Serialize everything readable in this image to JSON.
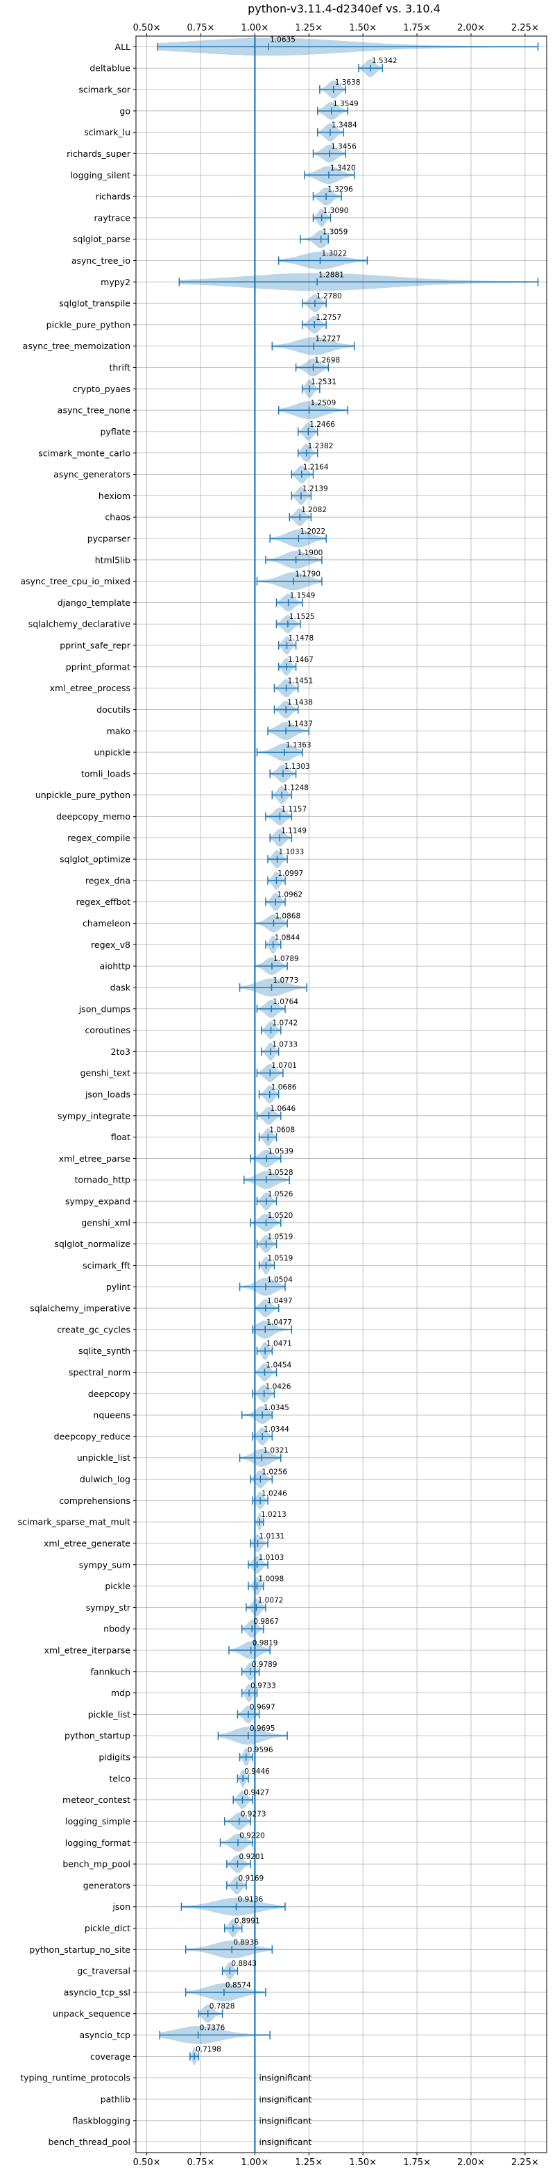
{
  "chart_data": {
    "type": "violin",
    "title": "python-v3.11.4-d2340ef vs. 3.10.4",
    "xlabel": "",
    "ylabel": "",
    "xlim": [
      0.45,
      2.35
    ],
    "x_ticks": [
      0.5,
      0.75,
      1.0,
      1.25,
      1.5,
      1.75,
      2.0,
      2.25
    ],
    "x_tick_labels": [
      "0.50×",
      "0.75×",
      "1.00×",
      "1.25×",
      "1.50×",
      "1.75×",
      "2.00×",
      "2.25×"
    ],
    "reference_line": 1.0,
    "grid": true,
    "insignificant_label": "insignificant",
    "benchmarks": [
      {
        "name": "ALL",
        "mean": 1.0635,
        "label": "1.0635",
        "min": 0.55,
        "max": 2.31
      },
      {
        "name": "deltablue",
        "mean": 1.5342,
        "label": "1.5342",
        "min": 1.48,
        "max": 1.59
      },
      {
        "name": "scimark_sor",
        "mean": 1.3638,
        "label": "1.3638",
        "min": 1.3,
        "max": 1.42
      },
      {
        "name": "go",
        "mean": 1.3549,
        "label": "1.3549",
        "min": 1.29,
        "max": 1.43
      },
      {
        "name": "scimark_lu",
        "mean": 1.3484,
        "label": "1.3484",
        "min": 1.29,
        "max": 1.41
      },
      {
        "name": "richards_super",
        "mean": 1.3456,
        "label": "1.3456",
        "min": 1.27,
        "max": 1.42
      },
      {
        "name": "logging_silent",
        "mean": 1.342,
        "label": "1.3420",
        "min": 1.23,
        "max": 1.46
      },
      {
        "name": "richards",
        "mean": 1.3296,
        "label": "1.3296",
        "min": 1.27,
        "max": 1.4
      },
      {
        "name": "raytrace",
        "mean": 1.309,
        "label": "1.3090",
        "min": 1.27,
        "max": 1.35
      },
      {
        "name": "sqlglot_parse",
        "mean": 1.3059,
        "label": "1.3059",
        "min": 1.21,
        "max": 1.34
      },
      {
        "name": "async_tree_io",
        "mean": 1.3022,
        "label": "1.3022",
        "min": 1.11,
        "max": 1.52
      },
      {
        "name": "mypy2",
        "mean": 1.2881,
        "label": "1.2881",
        "min": 0.65,
        "max": 2.31
      },
      {
        "name": "sqlglot_transpile",
        "mean": 1.278,
        "label": "1.2780",
        "min": 1.22,
        "max": 1.33
      },
      {
        "name": "pickle_pure_python",
        "mean": 1.2757,
        "label": "1.2757",
        "min": 1.22,
        "max": 1.33
      },
      {
        "name": "async_tree_memoization",
        "mean": 1.2727,
        "label": "1.2727",
        "min": 1.08,
        "max": 1.46
      },
      {
        "name": "thrift",
        "mean": 1.2698,
        "label": "1.2698",
        "min": 1.19,
        "max": 1.34
      },
      {
        "name": "crypto_pyaes",
        "mean": 1.2531,
        "label": "1.2531",
        "min": 1.22,
        "max": 1.3
      },
      {
        "name": "async_tree_none",
        "mean": 1.2509,
        "label": "1.2509",
        "min": 1.11,
        "max": 1.43
      },
      {
        "name": "pyflate",
        "mean": 1.2466,
        "label": "1.2466",
        "min": 1.2,
        "max": 1.29
      },
      {
        "name": "scimark_monte_carlo",
        "mean": 1.2382,
        "label": "1.2382",
        "min": 1.2,
        "max": 1.29
      },
      {
        "name": "async_generators",
        "mean": 1.2164,
        "label": "1.2164",
        "min": 1.17,
        "max": 1.27
      },
      {
        "name": "hexiom",
        "mean": 1.2139,
        "label": "1.2139",
        "min": 1.17,
        "max": 1.26
      },
      {
        "name": "chaos",
        "mean": 1.2082,
        "label": "1.2082",
        "min": 1.16,
        "max": 1.26
      },
      {
        "name": "pycparser",
        "mean": 1.2022,
        "label": "1.2022",
        "min": 1.07,
        "max": 1.33
      },
      {
        "name": "html5lib",
        "mean": 1.19,
        "label": "1.1900",
        "min": 1.05,
        "max": 1.31
      },
      {
        "name": "async_tree_cpu_io_mixed",
        "mean": 1.179,
        "label": "1.1790",
        "min": 1.01,
        "max": 1.31
      },
      {
        "name": "django_template",
        "mean": 1.1549,
        "label": "1.1549",
        "min": 1.1,
        "max": 1.22
      },
      {
        "name": "sqlalchemy_declarative",
        "mean": 1.1525,
        "label": "1.1525",
        "min": 1.1,
        "max": 1.21
      },
      {
        "name": "pprint_safe_repr",
        "mean": 1.1478,
        "label": "1.1478",
        "min": 1.11,
        "max": 1.19
      },
      {
        "name": "pprint_pformat",
        "mean": 1.1467,
        "label": "1.1467",
        "min": 1.11,
        "max": 1.19
      },
      {
        "name": "xml_etree_process",
        "mean": 1.1451,
        "label": "1.1451",
        "min": 1.09,
        "max": 1.2
      },
      {
        "name": "docutils",
        "mean": 1.1438,
        "label": "1.1438",
        "min": 1.09,
        "max": 1.2
      },
      {
        "name": "mako",
        "mean": 1.1437,
        "label": "1.1437",
        "min": 1.06,
        "max": 1.25
      },
      {
        "name": "unpickle",
        "mean": 1.1363,
        "label": "1.1363",
        "min": 1.01,
        "max": 1.22
      },
      {
        "name": "tomli_loads",
        "mean": 1.1303,
        "label": "1.1303",
        "min": 1.07,
        "max": 1.19
      },
      {
        "name": "unpickle_pure_python",
        "mean": 1.1248,
        "label": "1.1248",
        "min": 1.08,
        "max": 1.17
      },
      {
        "name": "deepcopy_memo",
        "mean": 1.1157,
        "label": "1.1157",
        "min": 1.05,
        "max": 1.17
      },
      {
        "name": "regex_compile",
        "mean": 1.1149,
        "label": "1.1149",
        "min": 1.07,
        "max": 1.17
      },
      {
        "name": "sqlglot_optimize",
        "mean": 1.1033,
        "label": "1.1033",
        "min": 1.06,
        "max": 1.15
      },
      {
        "name": "regex_dna",
        "mean": 1.0997,
        "label": "1.0997",
        "min": 1.06,
        "max": 1.14
      },
      {
        "name": "regex_effbot",
        "mean": 1.0962,
        "label": "1.0962",
        "min": 1.05,
        "max": 1.14
      },
      {
        "name": "chameleon",
        "mean": 1.0868,
        "label": "1.0868",
        "min": 1.0,
        "max": 1.15
      },
      {
        "name": "regex_v8",
        "mean": 1.0844,
        "label": "1.0844",
        "min": 1.05,
        "max": 1.12
      },
      {
        "name": "aiohttp",
        "mean": 1.0789,
        "label": "1.0789",
        "min": 1.0,
        "max": 1.15
      },
      {
        "name": "dask",
        "mean": 1.0773,
        "label": "1.0773",
        "min": 0.93,
        "max": 1.24
      },
      {
        "name": "json_dumps",
        "mean": 1.0764,
        "label": "1.0764",
        "min": 1.01,
        "max": 1.14
      },
      {
        "name": "coroutines",
        "mean": 1.0742,
        "label": "1.0742",
        "min": 1.03,
        "max": 1.12
      },
      {
        "name": "2to3",
        "mean": 1.0733,
        "label": "1.0733",
        "min": 1.03,
        "max": 1.11
      },
      {
        "name": "genshi_text",
        "mean": 1.0701,
        "label": "1.0701",
        "min": 1.01,
        "max": 1.13
      },
      {
        "name": "json_loads",
        "mean": 1.0686,
        "label": "1.0686",
        "min": 1.02,
        "max": 1.11
      },
      {
        "name": "sympy_integrate",
        "mean": 1.0646,
        "label": "1.0646",
        "min": 1.01,
        "max": 1.12
      },
      {
        "name": "float",
        "mean": 1.0608,
        "label": "1.0608",
        "min": 1.02,
        "max": 1.1
      },
      {
        "name": "xml_etree_parse",
        "mean": 1.0539,
        "label": "1.0539",
        "min": 0.98,
        "max": 1.12
      },
      {
        "name": "tornado_http",
        "mean": 1.0528,
        "label": "1.0528",
        "min": 0.95,
        "max": 1.16
      },
      {
        "name": "sympy_expand",
        "mean": 1.0526,
        "label": "1.0526",
        "min": 1.01,
        "max": 1.1
      },
      {
        "name": "genshi_xml",
        "mean": 1.052,
        "label": "1.0520",
        "min": 0.98,
        "max": 1.12
      },
      {
        "name": "sqlglot_normalize",
        "mean": 1.0519,
        "label": "1.0519",
        "min": 1.01,
        "max": 1.1
      },
      {
        "name": "scimark_fft",
        "mean": 1.0519,
        "label": "1.0519",
        "min": 1.02,
        "max": 1.09
      },
      {
        "name": "pylint",
        "mean": 1.0504,
        "label": "1.0504",
        "min": 0.93,
        "max": 1.14
      },
      {
        "name": "sqlalchemy_imperative",
        "mean": 1.0497,
        "label": "1.0497",
        "min": 1.0,
        "max": 1.11
      },
      {
        "name": "create_gc_cycles",
        "mean": 1.0477,
        "label": "1.0477",
        "min": 0.99,
        "max": 1.17
      },
      {
        "name": "sqlite_synth",
        "mean": 1.0471,
        "label": "1.0471",
        "min": 1.01,
        "max": 1.08
      },
      {
        "name": "spectral_norm",
        "mean": 1.0454,
        "label": "1.0454",
        "min": 1.0,
        "max": 1.1
      },
      {
        "name": "deepcopy",
        "mean": 1.0426,
        "label": "1.0426",
        "min": 0.99,
        "max": 1.09
      },
      {
        "name": "nqueens",
        "mean": 1.0345,
        "label": "1.0345",
        "min": 0.94,
        "max": 1.08
      },
      {
        "name": "deepcopy_reduce",
        "mean": 1.0344,
        "label": "1.0344",
        "min": 0.99,
        "max": 1.08
      },
      {
        "name": "unpickle_list",
        "mean": 1.0321,
        "label": "1.0321",
        "min": 0.93,
        "max": 1.12
      },
      {
        "name": "dulwich_log",
        "mean": 1.0256,
        "label": "1.0256",
        "min": 0.98,
        "max": 1.08
      },
      {
        "name": "comprehensions",
        "mean": 1.0246,
        "label": "1.0246",
        "min": 0.99,
        "max": 1.06
      },
      {
        "name": "scimark_sparse_mat_mult",
        "mean": 1.0213,
        "label": "1.0213",
        "min": 1.0,
        "max": 1.04
      },
      {
        "name": "xml_etree_generate",
        "mean": 1.0131,
        "label": "1.0131",
        "min": 0.98,
        "max": 1.06
      },
      {
        "name": "sympy_sum",
        "mean": 1.0103,
        "label": "1.0103",
        "min": 0.97,
        "max": 1.06
      },
      {
        "name": "pickle",
        "mean": 1.0098,
        "label": "1.0098",
        "min": 0.97,
        "max": 1.04
      },
      {
        "name": "sympy_str",
        "mean": 1.0072,
        "label": "1.0072",
        "min": 0.96,
        "max": 1.05
      },
      {
        "name": "nbody",
        "mean": 0.9867,
        "label": "0.9867",
        "min": 0.94,
        "max": 1.04
      },
      {
        "name": "xml_etree_iterparse",
        "mean": 0.9819,
        "label": "0.9819",
        "min": 0.88,
        "max": 1.07
      },
      {
        "name": "fannkuch",
        "mean": 0.9789,
        "label": "0.9789",
        "min": 0.94,
        "max": 1.02
      },
      {
        "name": "mdp",
        "mean": 0.9733,
        "label": "0.9733",
        "min": 0.94,
        "max": 1.01
      },
      {
        "name": "pickle_list",
        "mean": 0.9697,
        "label": "0.9697",
        "min": 0.92,
        "max": 1.02
      },
      {
        "name": "python_startup",
        "mean": 0.9695,
        "label": "0.9695",
        "min": 0.83,
        "max": 1.15
      },
      {
        "name": "pidigits",
        "mean": 0.9596,
        "label": "0.9596",
        "min": 0.93,
        "max": 0.99
      },
      {
        "name": "telco",
        "mean": 0.9446,
        "label": "0.9446",
        "min": 0.92,
        "max": 0.97
      },
      {
        "name": "meteor_contest",
        "mean": 0.9427,
        "label": "0.9427",
        "min": 0.9,
        "max": 0.99
      },
      {
        "name": "logging_simple",
        "mean": 0.9273,
        "label": "0.9273",
        "min": 0.86,
        "max": 0.98
      },
      {
        "name": "logging_format",
        "mean": 0.922,
        "label": "0.9220",
        "min": 0.84,
        "max": 0.99
      },
      {
        "name": "bench_mp_pool",
        "mean": 0.9201,
        "label": "0.9201",
        "min": 0.87,
        "max": 0.98
      },
      {
        "name": "generators",
        "mean": 0.9169,
        "label": "0.9169",
        "min": 0.87,
        "max": 0.96
      },
      {
        "name": "json",
        "mean": 0.9136,
        "label": "0.9136",
        "min": 0.66,
        "max": 1.14
      },
      {
        "name": "pickle_dict",
        "mean": 0.8991,
        "label": "0.8991",
        "min": 0.86,
        "max": 0.94
      },
      {
        "name": "python_startup_no_site",
        "mean": 0.8936,
        "label": "0.8936",
        "min": 0.68,
        "max": 1.08
      },
      {
        "name": "gc_traversal",
        "mean": 0.8843,
        "label": "0.8843",
        "min": 0.85,
        "max": 0.92
      },
      {
        "name": "asyncio_tcp_ssl",
        "mean": 0.8574,
        "label": "0.8574",
        "min": 0.68,
        "max": 1.05
      },
      {
        "name": "unpack_sequence",
        "mean": 0.7828,
        "label": "0.7828",
        "min": 0.74,
        "max": 0.85
      },
      {
        "name": "asyncio_tcp",
        "mean": 0.7376,
        "label": "0.7376",
        "min": 0.56,
        "max": 1.07
      },
      {
        "name": "coverage",
        "mean": 0.7198,
        "label": "0.7198",
        "min": 0.7,
        "max": 0.74
      },
      {
        "name": "typing_runtime_protocols",
        "insignificant": true
      },
      {
        "name": "pathlib",
        "insignificant": true
      },
      {
        "name": "flaskblogging",
        "insignificant": true
      },
      {
        "name": "bench_thread_pool",
        "insignificant": true
      }
    ]
  }
}
